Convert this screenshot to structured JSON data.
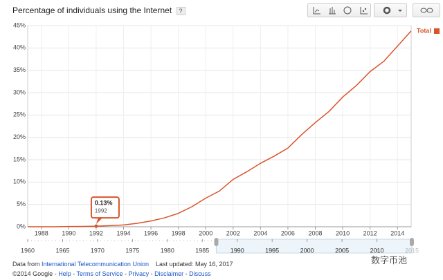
{
  "chart_data": {
    "type": "line",
    "title": "Percentage of individuals using the Internet",
    "help": "?",
    "x": [
      1987,
      1988,
      1989,
      1990,
      1991,
      1992,
      1993,
      1994,
      1995,
      1996,
      1997,
      1998,
      1999,
      2000,
      2001,
      2002,
      2003,
      2004,
      2005,
      2006,
      2007,
      2008,
      2009,
      2010,
      2011,
      2012,
      2013,
      2014,
      2015
    ],
    "series": [
      {
        "name": "Total",
        "color": "#d9542b",
        "values": [
          0,
          0,
          0,
          0.05,
          0.08,
          0.13,
          0.25,
          0.4,
          0.78,
          1.3,
          2.0,
          3.0,
          4.5,
          6.4,
          8.0,
          10.6,
          12.3,
          14.2,
          15.8,
          17.6,
          20.6,
          23.3,
          25.8,
          29.0,
          31.6,
          34.7,
          37.0,
          40.4,
          43.8
        ]
      }
    ],
    "xlim": [
      1987,
      2015
    ],
    "xticks": [
      1988,
      1990,
      1992,
      1994,
      1996,
      1998,
      2000,
      2002,
      2004,
      2006,
      2008,
      2010,
      2012,
      2014
    ],
    "ylim": [
      0,
      45
    ],
    "yticks": [
      {
        "value": 0,
        "label": "0%"
      },
      {
        "value": 5,
        "label": "5%"
      },
      {
        "value": 10,
        "label": "10%"
      },
      {
        "value": 15,
        "label": "15%"
      },
      {
        "value": 20,
        "label": "20%"
      },
      {
        "value": 25,
        "label": "25%"
      },
      {
        "value": 30,
        "label": "30%"
      },
      {
        "value": 35,
        "label": "35%"
      },
      {
        "value": 40,
        "label": "40%"
      },
      {
        "value": 45,
        "label": "45%"
      }
    ],
    "grid": true,
    "legend": "top-right",
    "tooltip": {
      "value_label": "0.13%",
      "date": "1992"
    },
    "timeline": {
      "xlim": [
        1960,
        2015
      ],
      "ticks": [
        1960,
        1965,
        1970,
        1975,
        1980,
        1985,
        1990,
        1995,
        2000,
        2005,
        2010,
        2015
      ],
      "window_ticks": [
        1990,
        1995,
        2000,
        2005,
        2010
      ]
    }
  },
  "footer": {
    "source_prefix": "Data from",
    "source_link": "International Telecommunication Union",
    "updated": "Last updated: May 16, 2017",
    "copyright": "©2014 Google",
    "links": [
      "Help",
      "Terms of Service",
      "Privacy",
      "Disclaimer",
      "Discuss"
    ]
  },
  "watermark": "数字币池"
}
